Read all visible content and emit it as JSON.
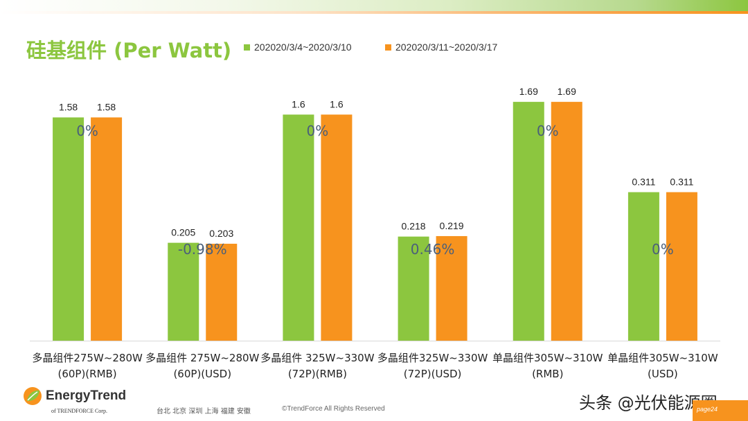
{
  "header": {
    "title": "硅基组件 (Per Watt)"
  },
  "colors": {
    "series1": "#8cc63f",
    "series2": "#f7931e",
    "change_label": "#4a5f7a"
  },
  "chart_data": {
    "type": "bar",
    "title": "硅基组件 (Per Watt)",
    "legend_position": "top",
    "grid": false,
    "categories": [
      [
        "多晶组件275W~280W",
        "(60P)(RMB)"
      ],
      [
        "多晶组件 275W~280W",
        "(60P)(USD)"
      ],
      [
        "多晶组件 325W~330W",
        "(72P)(RMB)"
      ],
      [
        "多晶组件325W~330W",
        "(72P)(USD)"
      ],
      [
        "单晶组件305W~310W",
        "(RMB)"
      ],
      [
        "单晶组件305W~310W",
        "(USD)"
      ]
    ],
    "series": [
      {
        "name": "202020/3/4~2020/3/10",
        "values": [
          1.58,
          0.205,
          1.6,
          0.218,
          1.69,
          0.311
        ],
        "labels": [
          "1.58",
          "0.205",
          "1.6",
          "0.218",
          "1.69",
          "0.311"
        ]
      },
      {
        "name": "202020/3/11~2020/3/17",
        "values": [
          1.58,
          0.203,
          1.6,
          0.219,
          1.69,
          0.311
        ],
        "labels": [
          "1.58",
          "0.203",
          "1.6",
          "0.219",
          "1.69",
          "0.311"
        ]
      }
    ],
    "change_labels": [
      "0%",
      "-0.98%",
      "0%",
      "0.46%",
      "0%",
      "0%"
    ],
    "panel_ylim": {
      "rmb": [
        0,
        1.96
      ],
      "usd": [
        0,
        0.58
      ]
    }
  },
  "footer": {
    "logo_name": "EnergyTrend",
    "logo_sub": "of TRENDFORCE Corp.",
    "cities": "台北  北京  深圳  上海  福建  安徽",
    "rights": "©TrendForce All Rights Reserved",
    "watermark": "头条 @光伏能源圈",
    "page_label": "page24",
    "logo_icon": "leaf-icon"
  }
}
